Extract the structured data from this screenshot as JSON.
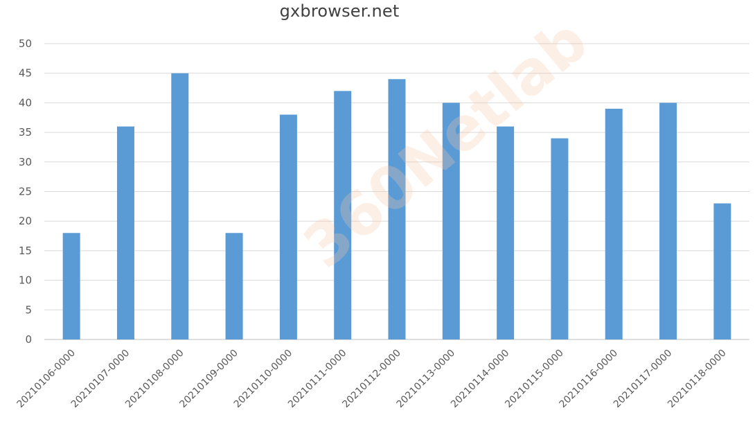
{
  "chart_data": {
    "type": "bar",
    "title": "gxbrowser.net",
    "categories": [
      "20210106-0000",
      "20210107-0000",
      "20210108-0000",
      "20210109-0000",
      "20210110-0000",
      "20210111-0000",
      "20210112-0000",
      "20210113-0000",
      "20210114-0000",
      "20210115-0000",
      "20210116-0000",
      "20210117-0000",
      "20210118-0000"
    ],
    "values": [
      18,
      36,
      45,
      18,
      38,
      42,
      44,
      40,
      36,
      34,
      39,
      40,
      23
    ],
    "ylim": [
      0,
      50
    ],
    "yticks": [
      0,
      5,
      10,
      15,
      20,
      25,
      30,
      35,
      40,
      45,
      50
    ],
    "xlabel": "",
    "ylabel": "",
    "grid": true,
    "legend": "none",
    "colors": {
      "bar": "#5b9bd5",
      "grid": "#d9d9d9",
      "axis": "#bfbfbf",
      "tick_text": "#595959",
      "title": "#404040"
    }
  },
  "watermark": "360Netlab"
}
